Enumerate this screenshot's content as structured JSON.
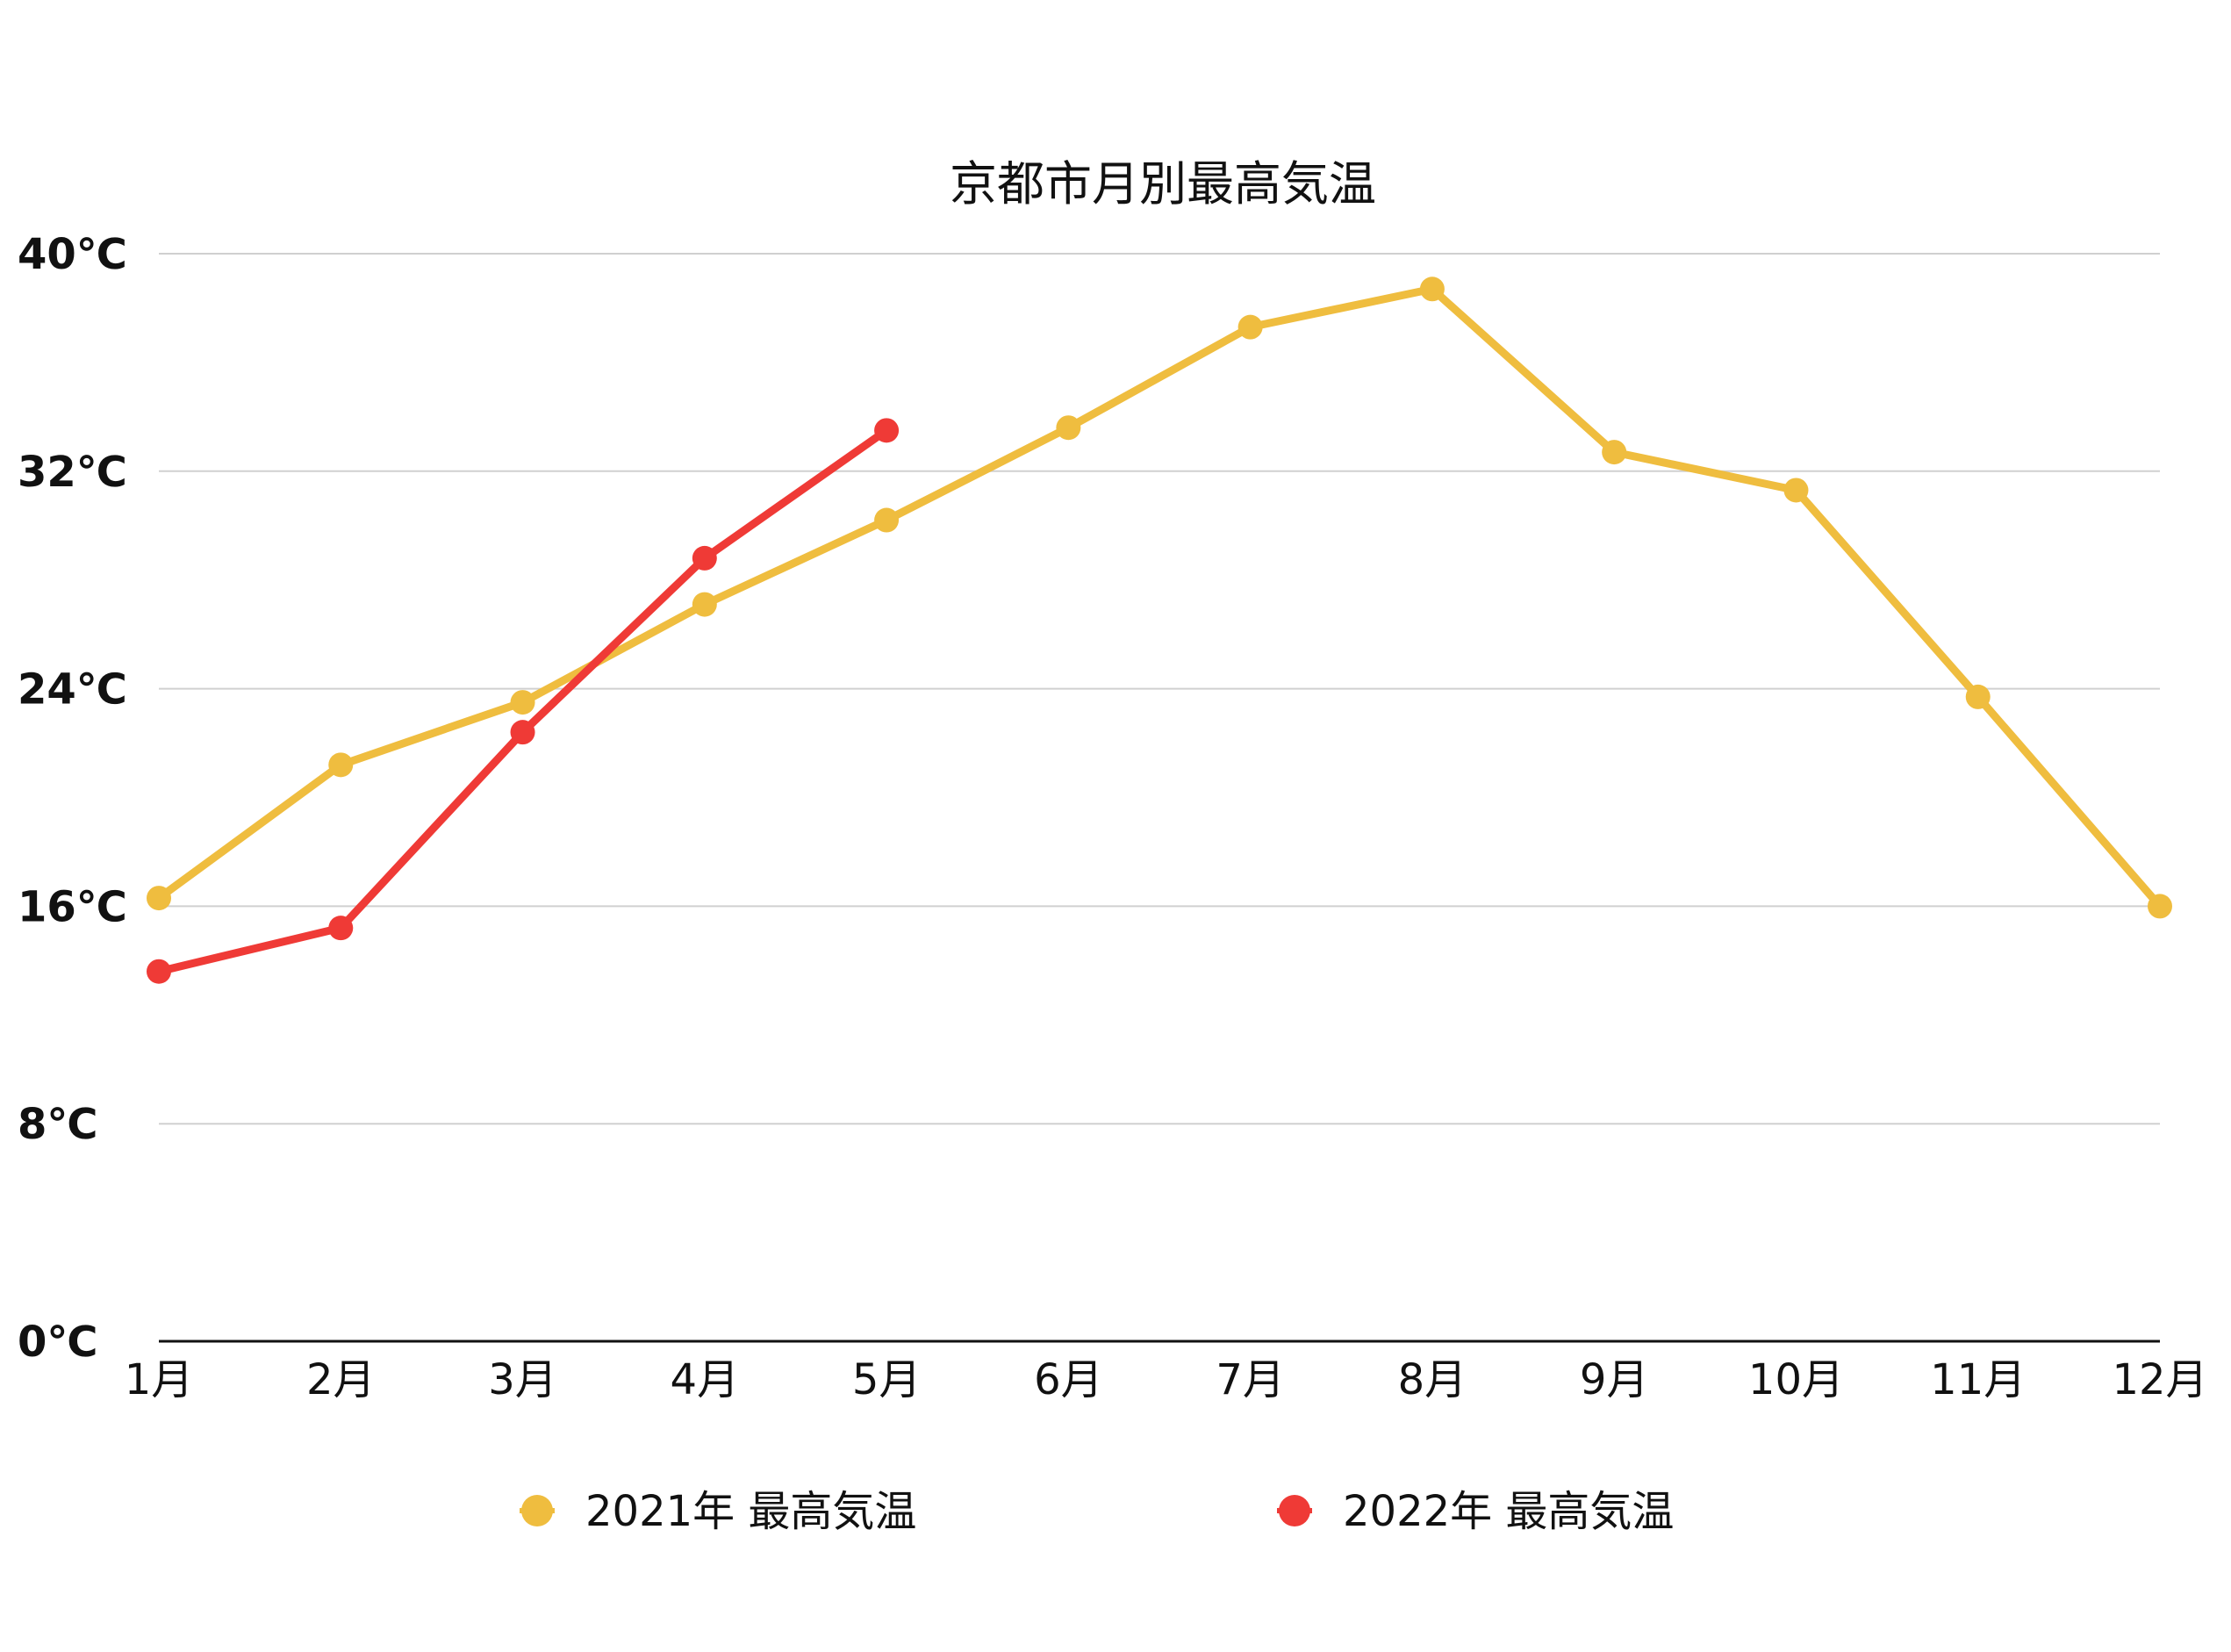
{
  "chart_data": {
    "type": "line",
    "title": "京都市月別最高気温",
    "xlabel": "",
    "ylabel": "",
    "categories": [
      "1月",
      "2月",
      "3月",
      "4月",
      "5月",
      "6月",
      "7月",
      "8月",
      "9月",
      "10月",
      "11月",
      "12月"
    ],
    "y_ticks": [
      "0℃",
      "8℃",
      "16℃",
      "24℃",
      "32℃",
      "40℃"
    ],
    "y_tick_values": [
      0,
      8,
      16,
      24,
      32,
      40
    ],
    "ylim": [
      0,
      40
    ],
    "grid": true,
    "legend_position": "bottom",
    "series": [
      {
        "name": "2021年 最高気温",
        "color": "#EFBD3F",
        "values": [
          16.3,
          21.2,
          23.5,
          27.1,
          30.2,
          33.6,
          37.3,
          38.7,
          32.7,
          31.3,
          23.7,
          16.0
        ]
      },
      {
        "name": "2022年 最高気温",
        "color": "#EF3A36",
        "values": [
          13.6,
          15.2,
          22.4,
          28.8,
          33.5,
          null,
          null,
          null,
          null,
          null,
          null,
          null
        ]
      }
    ]
  }
}
